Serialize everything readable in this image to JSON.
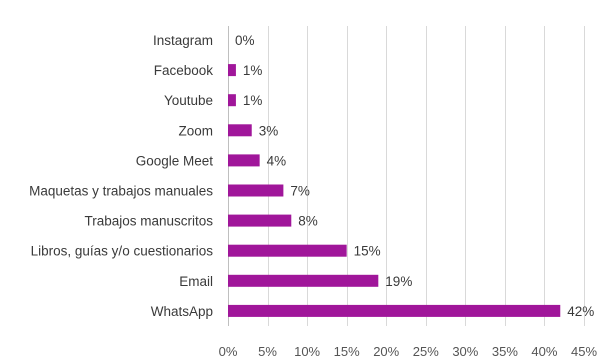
{
  "chart_data": {
    "type": "bar",
    "orientation": "horizontal",
    "title": "",
    "xlabel": "",
    "ylabel": "",
    "categories": [
      "Instagram",
      "Facebook",
      "Youtube",
      "Zoom",
      "Google Meet",
      "Maquetas y trabajos manuales",
      "Trabajos manuscritos",
      "Libros, guías y/o cuestionarios",
      "Email",
      "WhatsApp"
    ],
    "values": [
      0,
      1,
      1,
      3,
      4,
      7,
      8,
      15,
      19,
      42
    ],
    "value_labels": [
      "0%",
      "1%",
      "1%",
      "3%",
      "4%",
      "7%",
      "8%",
      "15%",
      "19%",
      "42%"
    ],
    "xlim": [
      0,
      45
    ],
    "xticks": [
      0,
      5,
      10,
      15,
      20,
      25,
      30,
      35,
      40,
      45
    ],
    "xtick_labels": [
      "0%",
      "5%",
      "10%",
      "15%",
      "20%",
      "25%",
      "30%",
      "35%",
      "40%",
      "45%"
    ],
    "grid": "vertical",
    "legend": "none",
    "bar_color": "#a0169a"
  }
}
